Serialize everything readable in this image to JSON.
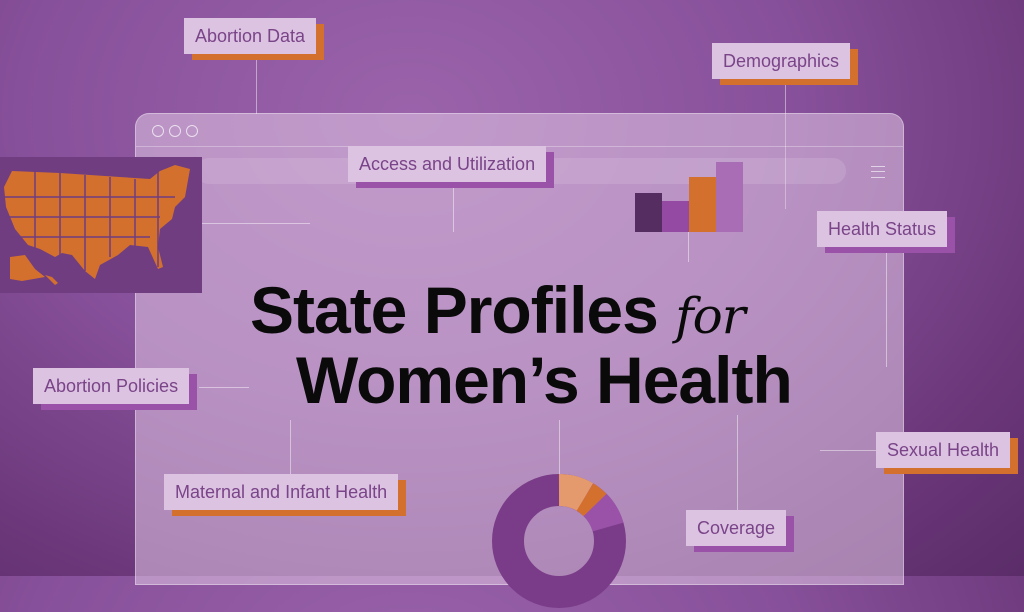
{
  "title": {
    "line1": "State Profiles",
    "for": "for",
    "line2": "Women’s Health"
  },
  "labels": {
    "abortion_data": "Abortion Data",
    "demographics": "Demographics",
    "access": "Access and Utilization",
    "health_status": "Health Status",
    "abortion_policies": "Abortion Policies",
    "sexual_health": "Sexual Health",
    "maternal": "Maternal and Infant Health",
    "coverage": "Coverage"
  },
  "icons": [
    "us-map-icon",
    "bar-chart-icon",
    "donut-chart-icon",
    "window-dots-icon",
    "hamburger-menu-icon"
  ],
  "colors": {
    "orange": "#d4702e",
    "purple": "#9a52a8",
    "dark_purple": "#552d60",
    "light_purple": "#a86db5",
    "label_bg": "#dcc3e2"
  }
}
